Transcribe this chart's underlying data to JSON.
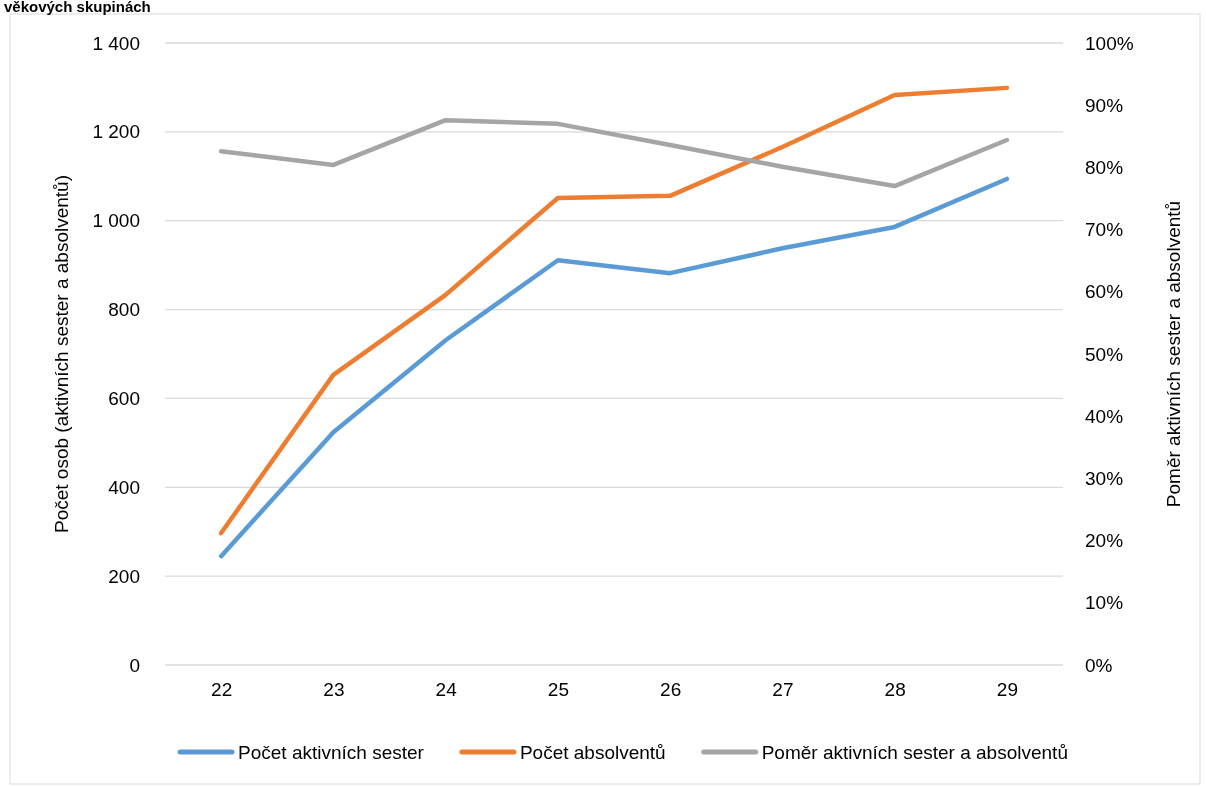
{
  "chart_data": {
    "type": "line",
    "title": "věkových skupinách",
    "ylabel": "Počet osob (aktivních sester a absolventů)",
    "y2label": "Poměr aktivních sester a absolventů",
    "categories": [
      "22",
      "23",
      "24",
      "25",
      "26",
      "27",
      "28",
      "29"
    ],
    "series": [
      {
        "name": "Počet aktivních sester",
        "color": "#5b9bd5",
        "values": [
          245,
          524,
          731,
          911,
          882,
          938,
          986,
          1094
        ]
      },
      {
        "name": "Počet absolventů",
        "color": "#ed7d31",
        "values": [
          297,
          653,
          833,
          1051,
          1056,
          1166,
          1283,
          1299
        ]
      },
      {
        "name": "Poměr aktivních sester a absolventů",
        "color": "#a5a5a5",
        "axis": "y2",
        "values": [
          82.6,
          80.4,
          87.6,
          87.0,
          83.6,
          80.1,
          77.0,
          84.4
        ]
      }
    ],
    "ylim": [
      0,
      1400
    ],
    "yticks": [
      0,
      {
        "value": 200,
        "label": "200"
      },
      {
        "value": 400,
        "label": "400"
      },
      {
        "value": 600,
        "label": "600"
      },
      {
        "value": 800,
        "label": "800"
      },
      {
        "value": 1000,
        "label": "1 000"
      },
      {
        "value": 1200,
        "label": "1 200"
      },
      {
        "value": 1400,
        "label": "1 400"
      }
    ],
    "y2lim": [
      0,
      100
    ],
    "y2ticks": [
      {
        "value": 0,
        "label": "0%"
      },
      {
        "value": 10,
        "label": "10%"
      },
      {
        "value": 20,
        "label": "20%"
      },
      {
        "value": 30,
        "label": "30%"
      },
      {
        "value": 40,
        "label": "40%"
      },
      {
        "value": 50,
        "label": "50%"
      },
      {
        "value": 60,
        "label": "60%"
      },
      {
        "value": 70,
        "label": "70%"
      },
      {
        "value": 80,
        "label": "80%"
      },
      {
        "value": 90,
        "label": "90%"
      },
      {
        "value": 100,
        "label": "100%"
      }
    ],
    "grid": "y",
    "legend": "bottom",
    "marker": "none",
    "line_style": "solid"
  }
}
